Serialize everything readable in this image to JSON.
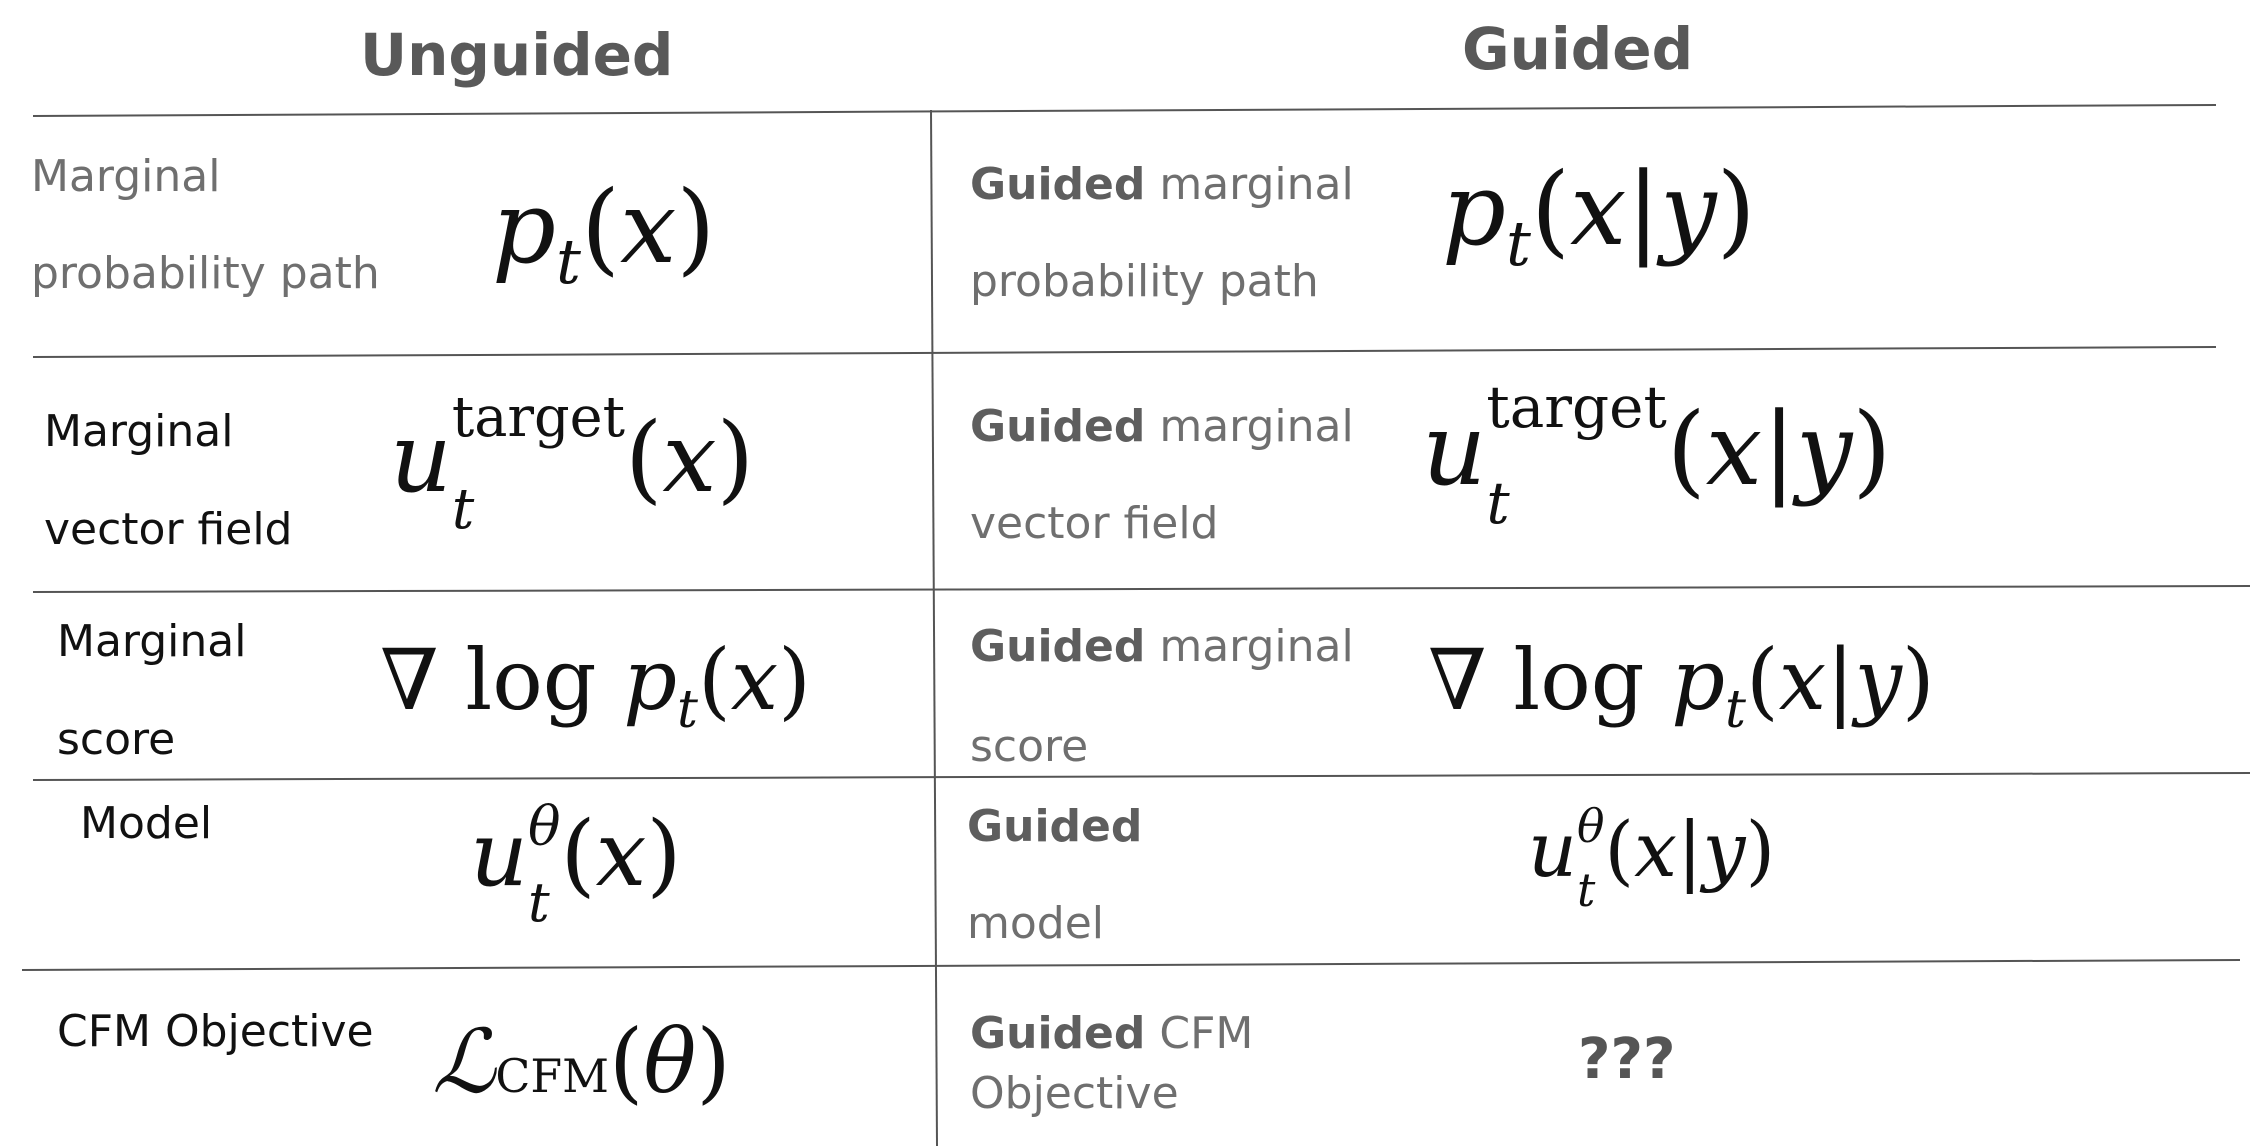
{
  "headers": {
    "unguided": "Unguided",
    "guided": "Guided"
  },
  "rows": [
    {
      "unguided_label_1": "Marginal",
      "unguided_label_2": "probability path",
      "unguided_expr": "p_t(x)",
      "guided_bold": "Guided",
      "guided_rest": " marginal",
      "guided_label_2": "probability path",
      "guided_expr": "p_t(x|y)"
    },
    {
      "unguided_label_1": "Marginal",
      "unguided_label_2": "vector field",
      "unguided_expr": "u_t^target(x)",
      "guided_bold": "Guided",
      "guided_rest": " marginal",
      "guided_label_2": "vector field",
      "guided_expr": "u_t^target(x|y)"
    },
    {
      "unguided_label_1": "Marginal",
      "unguided_label_2": "score",
      "unguided_expr": "∇ log p_t(x)",
      "guided_bold": "Guided",
      "guided_rest": " marginal",
      "guided_label_2": "score",
      "guided_expr": "∇ log p_t(x|y)"
    },
    {
      "unguided_label_1": "Model",
      "unguided_expr": "u_t^θ(x)",
      "guided_bold": "Guided",
      "guided_label_2": "model",
      "guided_expr": "u_t^θ(x|y)"
    },
    {
      "unguided_label_1": "CFM Objective",
      "unguided_expr": "L_CFM(θ)",
      "guided_bold": "Guided",
      "guided_rest": " CFM",
      "guided_label_2": "Objective",
      "guided_expr": "???"
    }
  ],
  "colors": {
    "line": "#555555",
    "header": "#595959",
    "grey_text": "#6f6f6f",
    "black_text": "#111111"
  }
}
